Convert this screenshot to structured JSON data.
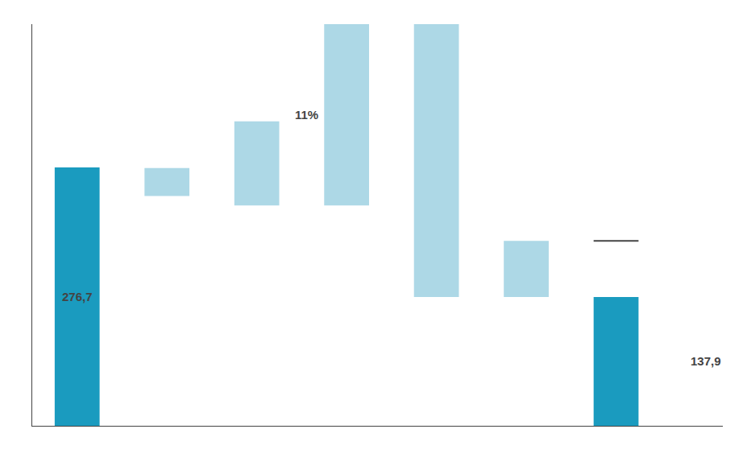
{
  "chart_data": {
    "type": "bar",
    "categories": [
      null,
      null,
      null,
      null,
      null,
      null,
      null,
      null
    ],
    "values": [
      276.7,
      30,
      90,
      194,
      292.1,
      60,
      null,
      137.9
    ],
    "base": [
      0,
      246,
      236,
      236,
      137.9,
      137.9,
      null,
      0
    ],
    "colors": [
      "#1a9bbf",
      "#add8e6",
      "#add8e6",
      "#add8e6",
      "#add8e6",
      "#add8e6",
      null,
      "#1a9bbf"
    ],
    "connectors": [
      null,
      null,
      null,
      null,
      null,
      null,
      197.9,
      null
    ],
    "connector_color": "#ffffff",
    "annotations": [
      {
        "text": "276,7",
        "bar": 0
      },
      {
        "text": "137,9",
        "bar": 7
      },
      {
        "text": "11%",
        "bar": 3
      }
    ],
    "ylim": [
      0,
      430
    ],
    "yticks": [],
    "grid": false,
    "tick_labels": false
  }
}
